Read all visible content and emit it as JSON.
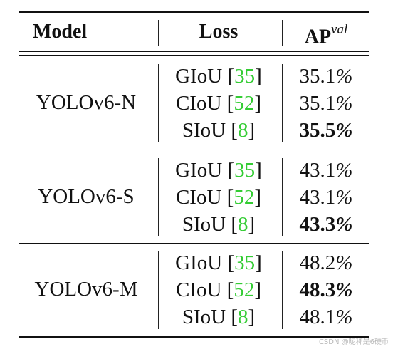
{
  "table": {
    "headers": {
      "model": "Model",
      "loss": "Loss",
      "ap_main": "AP",
      "ap_sup": "val"
    },
    "groups": [
      {
        "model": "YOLOv6-N",
        "rows": [
          {
            "loss": "GIoU",
            "ref": "35",
            "ap": "35.1",
            "bold": false
          },
          {
            "loss": "CIoU",
            "ref": "52",
            "ap": "35.1",
            "bold": false
          },
          {
            "loss": "SIoU",
            "ref": "8",
            "ap": "35.5",
            "bold": true
          }
        ]
      },
      {
        "model": "YOLOv6-S",
        "rows": [
          {
            "loss": "GIoU",
            "ref": "35",
            "ap": "43.1",
            "bold": false
          },
          {
            "loss": "CIoU",
            "ref": "52",
            "ap": "43.1",
            "bold": false
          },
          {
            "loss": "SIoU",
            "ref": "8",
            "ap": "43.3",
            "bold": true
          }
        ]
      },
      {
        "model": "YOLOv6-M",
        "rows": [
          {
            "loss": "GIoU",
            "ref": "35",
            "ap": "48.2",
            "bold": false
          },
          {
            "loss": "CIoU",
            "ref": "52",
            "ap": "48.3",
            "bold": true
          },
          {
            "loss": "SIoU",
            "ref": "8",
            "ap": "48.1",
            "bold": false
          }
        ]
      }
    ],
    "percent_sign": "%",
    "citation_color": "#33cc33"
  },
  "watermark": "CSDN @昵称是6硬币"
}
